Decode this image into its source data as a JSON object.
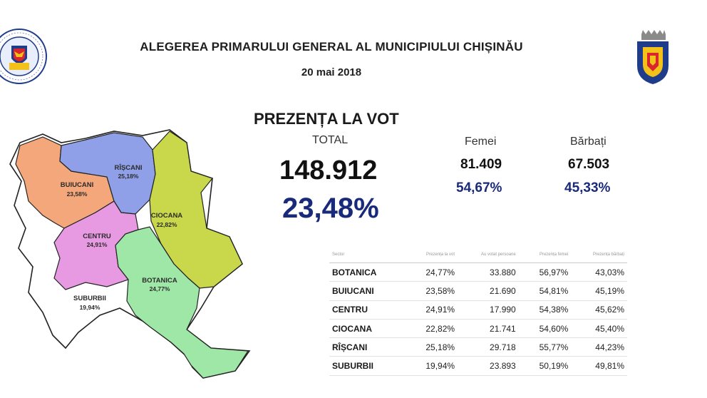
{
  "header": {
    "title": "ALEGEREA PRIMARULUI GENERAL AL MUNICIPIULUI CHIȘINĂU",
    "date": "20 mai 2018"
  },
  "turnout": {
    "heading": "PREZENȚA LA VOT",
    "total_label": "TOTAL",
    "total_value": "148.912",
    "total_percent": "23,48%",
    "women_label": "Femei",
    "women_value": "81.409",
    "women_percent": "54,67%",
    "men_label": "Bărbați",
    "men_value": "67.503",
    "men_percent": "45,33%"
  },
  "map_regions": [
    {
      "name": "RÎȘCANI",
      "percent": "25,18%",
      "color": "#8fa0e8"
    },
    {
      "name": "BUIUCANI",
      "percent": "23,58%",
      "color": "#f4a77a"
    },
    {
      "name": "CIOCANA",
      "percent": "22,82%",
      "color": "#c9d84a"
    },
    {
      "name": "CENTRU",
      "percent": "24,91%",
      "color": "#e79ae2"
    },
    {
      "name": "BOTANICA",
      "percent": "24,77%",
      "color": "#9ee7a6"
    },
    {
      "name": "SUBURBII",
      "percent": "19,94%",
      "color": "#ffffff"
    }
  ],
  "colors": {
    "accent_blue": "#1a2a7a",
    "text_dark": "#1a1a1a"
  },
  "table": {
    "headers": [
      "Sector",
      "Prezența la vot",
      "Au votat persoane",
      "Prezența femei",
      "Prezența bărbați"
    ],
    "rows": [
      [
        "BOTANICA",
        "24,77%",
        "33.880",
        "56,97%",
        "43,03%"
      ],
      [
        "BUIUCANI",
        "23,58%",
        "21.690",
        "54,81%",
        "45,19%"
      ],
      [
        "CENTRU",
        "24,91%",
        "17.990",
        "54,38%",
        "45,62%"
      ],
      [
        "CIOCANA",
        "22,82%",
        "21.741",
        "54,60%",
        "45,40%"
      ],
      [
        "RÎȘCANI",
        "25,18%",
        "29.718",
        "55,77%",
        "44,23%"
      ],
      [
        "SUBURBII",
        "19,94%",
        "23.893",
        "50,19%",
        "49,81%"
      ]
    ]
  }
}
